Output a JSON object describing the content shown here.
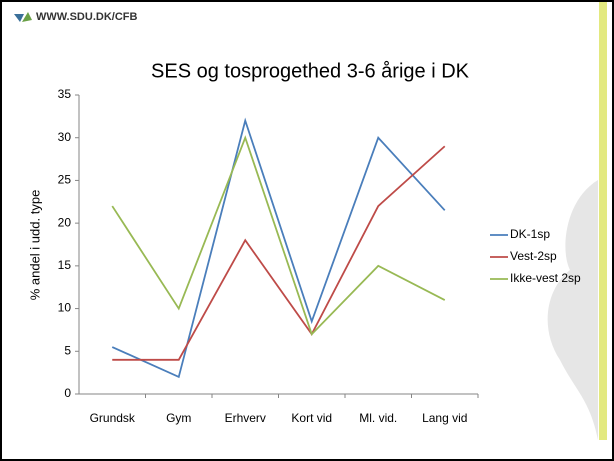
{
  "header": {
    "url": "WWW.SDU.DK/CFB"
  },
  "chart_data": {
    "type": "line",
    "title": "SES og tosprogethed 3-6 årige i DK",
    "y_label": "% andel i udd. type",
    "categories": [
      "Grundsk",
      "Gym",
      "Erhverv",
      "Kort vid",
      "Ml. vid.",
      "Lang vid"
    ],
    "series": [
      {
        "name": "DK-1sp",
        "color": "#4a7ebb",
        "values": [
          5.5,
          2,
          32,
          8.5,
          30,
          21.5
        ]
      },
      {
        "name": "Vest-2sp",
        "color": "#be4b48",
        "values": [
          4,
          4,
          18,
          7,
          22,
          29
        ]
      },
      {
        "name": "Ikke-vest 2sp",
        "color": "#98b954",
        "values": [
          22,
          10,
          30,
          7,
          15,
          11
        ]
      }
    ],
    "ylim": [
      0,
      35
    ],
    "yticks": [
      0,
      5,
      10,
      15,
      20,
      25,
      30,
      35
    ],
    "grid": false,
    "legend": "right"
  }
}
